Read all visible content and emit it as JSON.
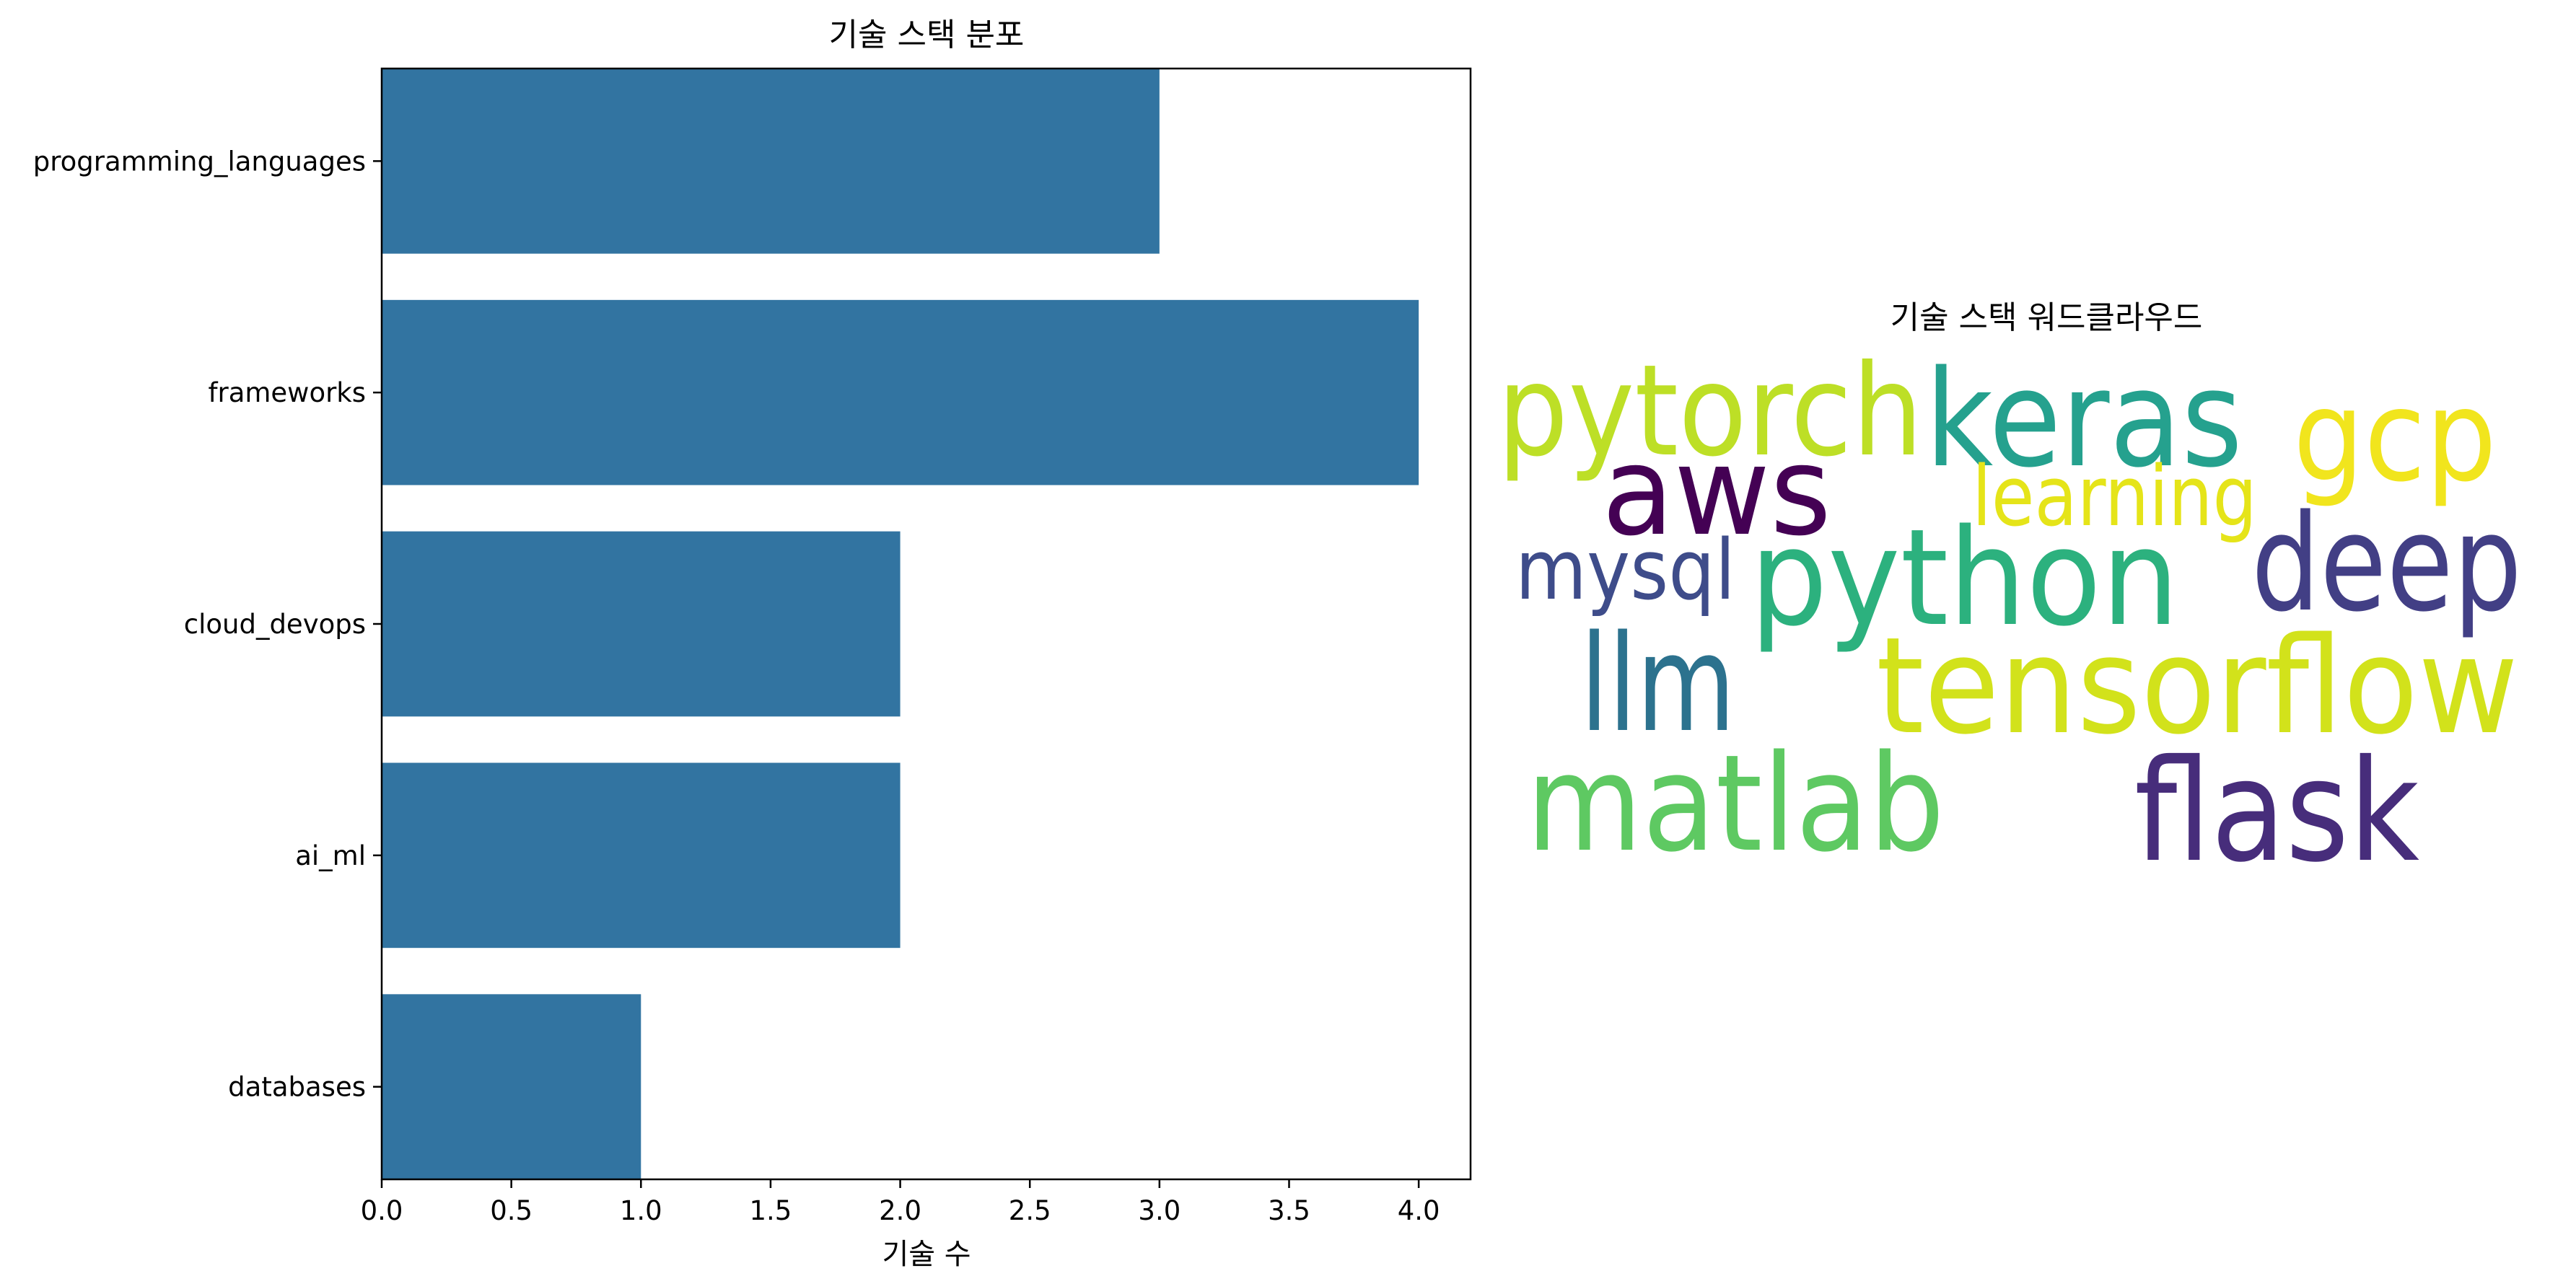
{
  "chart_data": [
    {
      "type": "bar",
      "orientation": "horizontal",
      "title": "기술 스택 분포",
      "xlabel": "기술 수",
      "ylabel": "",
      "categories": [
        "programming_languages",
        "frameworks",
        "cloud_devops",
        "ai_ml",
        "databases"
      ],
      "values": [
        3,
        4,
        2,
        2,
        1
      ],
      "xlim": [
        0,
        4.2
      ],
      "xticks": [
        "0.0",
        "0.5",
        "1.0",
        "1.5",
        "2.0",
        "2.5",
        "3.0",
        "3.5",
        "4.0"
      ],
      "bar_color": "#3274a1",
      "grid": false,
      "legend": "none"
    },
    {
      "type": "wordcloud",
      "title": "기술 스택 워드클라우드",
      "words": [
        {
          "text": "pytorch",
          "color": "#bddf26"
        },
        {
          "text": "keras",
          "color": "#25a18e"
        },
        {
          "text": "gcp",
          "color": "#f1e51d"
        },
        {
          "text": "aws",
          "color": "#440154"
        },
        {
          "text": "learning",
          "color": "#e5e419"
        },
        {
          "text": "mysql",
          "color": "#3e4c8a"
        },
        {
          "text": "python",
          "color": "#2cb17e"
        },
        {
          "text": "deep",
          "color": "#423f85"
        },
        {
          "text": "llm",
          "color": "#2c728e"
        },
        {
          "text": "tensorflow",
          "color": "#d2e21b"
        },
        {
          "text": "matlab",
          "color": "#5ec962"
        },
        {
          "text": "flask",
          "color": "#472d7b"
        }
      ]
    }
  ]
}
